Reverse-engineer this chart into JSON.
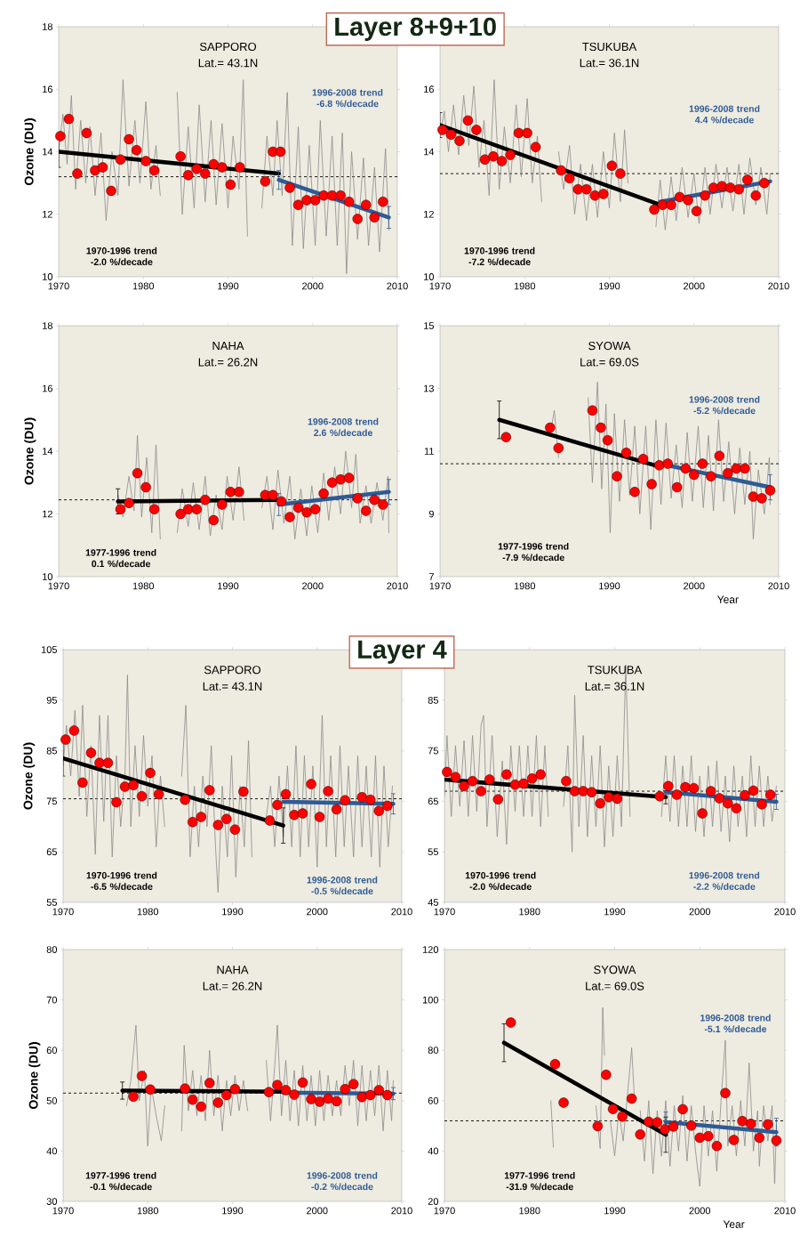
{
  "chart_data": [
    {
      "type": "line",
      "title": "SAPPORO",
      "subtitle": "Lat.= 43.1N",
      "ylabel": "Ozone (DU)",
      "annotations": [
        "Layer 8+9+10"
      ],
      "xlim": [
        1970,
        2010
      ],
      "xticks": [
        1970,
        1980,
        1990,
        2000,
        2010
      ],
      "ylim": [
        10,
        18
      ],
      "yticks": [
        10,
        12,
        14,
        16,
        18
      ],
      "ref_lines": [
        {
          "axis": "y",
          "value": 13.2,
          "line_style": "dashed"
        }
      ],
      "series": [
        {
          "color": "#8c8c8c",
          "x": [
            1970.0,
            1970.5,
            1971.0,
            1971.5,
            1972.0,
            1972.6,
            1973.2,
            1973.7,
            1974.3,
            1975.0,
            1975.6,
            1976.3,
            1977.0,
            1977.6,
            1978.3,
            1979.0,
            1979.6,
            1980.3,
            1980.9,
            1981.5,
            1982.0,
            1983.0,
            1984.0,
            1984.6,
            1985.3,
            1986.0,
            1986.6,
            1987.3,
            1988.0,
            1988.6,
            1989.3,
            1990.0,
            1990.6,
            1991.3,
            1991.8,
            1992.3,
            1993.0,
            1994.0,
            1994.6,
            1995.3,
            1995.8,
            1996.4,
            1997.0,
            1997.6,
            1998.3,
            1998.9,
            1999.6,
            2000.3,
            2000.9,
            2001.6,
            2002.3,
            2002.9,
            2003.5,
            2004.0,
            2004.6,
            2005.3,
            2006.0,
            2006.6,
            2007.3,
            2007.9,
            2008.6,
            2009.0
          ],
          "values": [
            14.0,
            15.2,
            13.6,
            15.8,
            12.8,
            15.0,
            13.0,
            14.8,
            12.6,
            14.6,
            11.8,
            14.0,
            12.6,
            16.3,
            12.9,
            15.0,
            13.0,
            15.6,
            12.8,
            14.2,
            12.6,
            null,
            15.9,
            12.0,
            14.8,
            12.2,
            15.5,
            12.4,
            15.0,
            12.3,
            14.9,
            12.2,
            14.5,
            12.8,
            16.3,
            11.3,
            null,
            12.2,
            14.5,
            12.6,
            15.0,
            12.6,
            15.9,
            11.0,
            14.8,
            10.9,
            14.2,
            11.0,
            15.0,
            11.3,
            14.5,
            11.0,
            14.6,
            10.1,
            14.0,
            11.2,
            13.8,
            11.0,
            13.5,
            10.8,
            14.1,
            11.5
          ]
        },
        {
          "type": "scatter",
          "marker": "circle",
          "color": "#ff0000",
          "x": [
            1970.2,
            1971.2,
            1972.2,
            1973.3,
            1974.3,
            1975.2,
            1976.2,
            1977.3,
            1978.3,
            1979.2,
            1980.3,
            1981.3,
            1984.4,
            1985.3,
            1986.3,
            1987.3,
            1988.3,
            1989.3,
            1990.3,
            1991.4,
            1994.4,
            1995.3,
            1996.2,
            1997.3,
            1998.3,
            1999.3,
            2000.3,
            2001.3,
            2002.3,
            2003.3,
            2004.3,
            2005.3,
            2006.3,
            2007.3,
            2008.3
          ],
          "values": [
            14.5,
            15.05,
            13.3,
            14.6,
            13.4,
            13.5,
            12.75,
            13.75,
            14.4,
            14.05,
            13.7,
            13.4,
            13.85,
            13.25,
            13.45,
            13.3,
            13.6,
            13.5,
            12.95,
            13.5,
            13.05,
            14.0,
            14.0,
            12.85,
            12.3,
            12.45,
            12.45,
            12.6,
            12.6,
            12.6,
            12.4,
            11.85,
            12.3,
            11.9,
            12.4
          ]
        },
        {
          "type": "line",
          "name": "1970-1996 trend -2.0 %/decade",
          "color": "#000000",
          "x": [
            1970,
            1996
          ],
          "values": [
            14.0,
            13.3
          ],
          "errors": [
            0.5,
            null
          ]
        },
        {
          "type": "line",
          "name": "1996-2008 trend -6.8 %/decade",
          "color": "#2e5b95",
          "x": [
            1996,
            2009
          ],
          "values": [
            13.1,
            11.9
          ],
          "errors": [
            0.3,
            0.35
          ]
        }
      ]
    },
    {
      "type": "line",
      "title": "TSUKUBA",
      "subtitle": "Lat.= 36.1N",
      "xlim": [
        1970,
        2010
      ],
      "xticks": [
        1970,
        1980,
        1990,
        2000,
        2010
      ],
      "ylim": [
        10,
        18
      ],
      "yticks": [
        10,
        12,
        14,
        16
      ],
      "ref_lines": [
        {
          "axis": "y",
          "value": 13.3,
          "line_style": "dashed"
        }
      ],
      "series": [
        {
          "color": "#8c8c8c",
          "x": [
            1970.0,
            1970.5,
            1971.0,
            1971.6,
            1972.2,
            1972.8,
            1973.4,
            1974.0,
            1974.6,
            1975.2,
            1975.8,
            1976.4,
            1977.0,
            1977.6,
            1978.3,
            1979.0,
            1979.6,
            1980.3,
            1980.9,
            1981.5,
            1982.0,
            1983.0,
            1984.0,
            1984.6,
            1985.3,
            1985.9,
            1986.6,
            1987.3,
            1988.0,
            1988.6,
            1989.3,
            1990.0,
            1990.6,
            1991.3,
            1991.8,
            1992.2,
            1993.0,
            1995.5,
            1996.0,
            1996.6,
            1997.3,
            1997.9,
            1998.6,
            1999.3,
            2000.0,
            2000.6,
            2001.3,
            2001.9,
            2002.6,
            2003.3,
            2003.9,
            2004.6,
            2005.3,
            2005.9,
            2006.6,
            2007.3,
            2007.9,
            2008.6,
            2009.0
          ],
          "values": [
            14.5,
            15.3,
            14.0,
            15.5,
            13.9,
            15.8,
            14.2,
            16.1,
            13.5,
            15.0,
            12.6,
            16.3,
            12.8,
            14.8,
            13.0,
            15.5,
            13.2,
            15.7,
            13.0,
            14.5,
            12.4,
            null,
            14.0,
            12.8,
            14.2,
            12.0,
            13.6,
            11.8,
            13.6,
            11.9,
            14.0,
            12.2,
            14.6,
            12.4,
            14.7,
            13.0,
            null,
            11.6,
            13.1,
            11.5,
            13.2,
            11.8,
            13.5,
            11.9,
            13.3,
            11.7,
            13.5,
            12.0,
            13.6,
            12.2,
            13.5,
            12.1,
            13.6,
            12.0,
            13.8,
            12.3,
            13.5,
            12.0,
            13.3
          ]
        },
        {
          "type": "scatter",
          "marker": "circle",
          "color": "#ff0000",
          "x": [
            1970.3,
            1971.3,
            1972.3,
            1973.3,
            1974.3,
            1975.3,
            1976.3,
            1977.3,
            1978.3,
            1979.3,
            1980.3,
            1981.3,
            1984.3,
            1985.3,
            1986.3,
            1987.3,
            1988.3,
            1989.3,
            1990.3,
            1991.3,
            1995.3,
            1996.3,
            1997.3,
            1998.3,
            1999.3,
            2000.3,
            2001.3,
            2002.3,
            2003.3,
            2004.3,
            2005.3,
            2006.3,
            2007.3,
            2008.3
          ],
          "values": [
            14.7,
            14.55,
            14.35,
            15.0,
            14.7,
            13.75,
            13.85,
            13.7,
            13.9,
            14.6,
            14.6,
            14.15,
            13.4,
            13.15,
            12.8,
            12.8,
            12.6,
            12.65,
            13.55,
            13.3,
            12.15,
            12.3,
            12.3,
            12.55,
            12.45,
            12.1,
            12.6,
            12.85,
            12.9,
            12.85,
            12.8,
            13.1,
            12.6,
            13.0
          ]
        },
        {
          "type": "line",
          "name": "1970-1996 trend -7.2 %/decade",
          "color": "#000000",
          "x": [
            1970,
            1996
          ],
          "values": [
            14.85,
            12.3
          ],
          "errors": [
            0.4,
            null
          ]
        },
        {
          "type": "line",
          "name": "1996-2008 trend 4.4 %/decade",
          "color": "#2e5b95",
          "x": [
            1996,
            2009
          ],
          "values": [
            12.4,
            13.05
          ],
          "errors": [
            null,
            null
          ]
        }
      ]
    },
    {
      "type": "line",
      "title": "NAHA",
      "subtitle": "Lat.= 26.2N",
      "ylabel": "Ozone (DU)",
      "xlim": [
        1970,
        2010
      ],
      "xticks": [
        1970,
        1980,
        1990,
        2000,
        2010
      ],
      "ylim": [
        10,
        18
      ],
      "yticks": [
        10,
        12,
        14,
        16,
        18
      ],
      "ref_lines": [
        {
          "axis": "y",
          "value": 12.45,
          "line_style": "dashed"
        }
      ],
      "series": [
        {
          "color": "#8c8c8c",
          "x": [
            1977.0,
            1977.6,
            1978.3,
            1978.9,
            1979.3,
            1979.8,
            1980.4,
            1981.0,
            1981.5,
            1982.0,
            1983.0,
            1984.0,
            1984.6,
            1985.3,
            1985.9,
            1986.6,
            1987.3,
            1987.9,
            1988.6,
            1989.3,
            1989.9,
            1990.6,
            1991.3,
            1991.9,
            1993.0,
            1994.0,
            1994.6,
            1995.3,
            1995.9,
            1996.6,
            1997.3,
            1997.9,
            1998.6,
            1999.3,
            1999.9,
            2000.6,
            2001.3,
            2001.9,
            2002.6,
            2003.3,
            2003.9,
            2004.6,
            2005.1,
            2005.6,
            2006.3,
            2006.9,
            2007.6,
            2008.3,
            2008.9,
            2009.0
          ],
          "values": [
            12.6,
            11.9,
            13.2,
            12.1,
            14.5,
            11.9,
            13.8,
            11.4,
            14.2,
            11.2,
            null,
            11.4,
            12.8,
            11.6,
            13.0,
            11.5,
            13.2,
            11.3,
            12.6,
            11.5,
            13.2,
            11.8,
            13.5,
            11.8,
            null,
            12.2,
            13.2,
            11.5,
            13.4,
            11.7,
            13.2,
            11.2,
            12.8,
            11.3,
            12.9,
            11.4,
            13.3,
            11.8,
            13.5,
            12.0,
            14.0,
            12.2,
            13.9,
            11.7,
            12.9,
            11.7,
            13.0,
            11.8,
            13.2,
            11.4
          ]
        },
        {
          "type": "scatter",
          "marker": "circle",
          "color": "#ff0000",
          "x": [
            1977.3,
            1978.3,
            1979.3,
            1980.3,
            1981.3,
            1984.4,
            1985.3,
            1986.3,
            1987.3,
            1988.3,
            1989.3,
            1990.3,
            1991.3,
            1994.4,
            1995.3,
            1996.3,
            1997.3,
            1998.3,
            1999.3,
            2000.3,
            2001.3,
            2002.3,
            2003.3,
            2004.3,
            2005.3,
            2006.3,
            2007.3,
            2008.3
          ],
          "values": [
            12.15,
            12.35,
            13.3,
            12.85,
            12.15,
            12.0,
            12.15,
            12.15,
            12.45,
            11.8,
            12.3,
            12.7,
            12.7,
            12.6,
            12.6,
            12.4,
            11.9,
            12.2,
            12.05,
            12.15,
            12.65,
            13.0,
            13.1,
            13.15,
            12.5,
            12.1,
            12.45,
            12.3
          ]
        },
        {
          "type": "line",
          "name": "1977-1996 trend 0.1 %/decade",
          "color": "#000000",
          "x": [
            1977,
            1996
          ],
          "values": [
            12.4,
            12.45
          ],
          "errors": [
            0.4,
            null
          ]
        },
        {
          "type": "line",
          "name": "1996-2008 trend 2.6 %/decade",
          "color": "#2e5b95",
          "x": [
            1996,
            2009
          ],
          "values": [
            12.3,
            12.7
          ],
          "errors": [
            0.35,
            0.4
          ]
        }
      ]
    },
    {
      "type": "line",
      "title": "SYOWA",
      "subtitle": "Lat.= 69.0S",
      "xlabel": "Year",
      "xlim": [
        1970,
        2010
      ],
      "xticks": [
        1970,
        1980,
        1990,
        2000,
        2010
      ],
      "ylim": [
        7,
        15
      ],
      "yticks": [
        7,
        9,
        11,
        13,
        15
      ],
      "ref_lines": [
        {
          "axis": "y",
          "value": 10.6,
          "line_style": "dashed"
        }
      ],
      "series": [
        {
          "color": "#8c8c8c",
          "x": [
            1983.0,
            1983.5,
            1984.0,
            1985.0,
            1987.5,
            1988.0,
            1988.6,
            1989.1,
            1989.6,
            1990.1,
            1990.6,
            1991.2,
            1991.8,
            1992.4,
            1993.0,
            1993.6,
            1994.3,
            1994.9,
            1995.5,
            1996.1,
            1996.7,
            1997.3,
            1997.9,
            1998.6,
            1999.2,
            1999.8,
            2000.5,
            2001.1,
            2001.7,
            2002.3,
            2002.9,
            2003.5,
            2004.1,
            2004.8,
            2005.4,
            2006.0,
            2006.6,
            2007.0,
            2007.6,
            2008.3,
            2008.9,
            2009.0
          ],
          "values": [
            11.5,
            12.3,
            10.8,
            null,
            12.7,
            10.0,
            13.2,
            9.8,
            12.5,
            8.4,
            12.2,
            9.4,
            12.0,
            9.6,
            11.8,
            9.0,
            11.8,
            8.5,
            12.0,
            9.3,
            11.9,
            9.5,
            11.2,
            9.2,
            11.6,
            9.4,
            11.8,
            9.2,
            11.5,
            9.1,
            12.0,
            9.4,
            11.3,
            9.0,
            11.1,
            9.3,
            11.0,
            8.2,
            10.4,
            9.0,
            10.8,
            9.3
          ]
        },
        {
          "type": "scatter",
          "marker": "circle",
          "color": "#ff0000",
          "x": [
            1977.8,
            1983.0,
            1984.0,
            1988.0,
            1989.0,
            1989.8,
            1990.9,
            1992.0,
            1993.0,
            1994.0,
            1995.0,
            1995.9,
            1996.9,
            1998.0,
            1999.0,
            2000.0,
            2001.0,
            2002.0,
            2003.0,
            2004.0,
            2005.0,
            2006.0,
            2007.0,
            2008.0,
            2009.0
          ],
          "values": [
            11.45,
            11.75,
            11.1,
            12.3,
            11.75,
            11.35,
            10.2,
            10.95,
            9.7,
            10.75,
            9.95,
            10.55,
            10.6,
            9.85,
            10.45,
            10.25,
            10.6,
            10.2,
            10.85,
            10.3,
            10.45,
            10.45,
            9.55,
            9.5,
            9.75
          ]
        },
        {
          "type": "line",
          "name": "1977-1996 trend -7.9 %/decade",
          "color": "#000000",
          "x": [
            1977,
            1996
          ],
          "values": [
            12.0,
            10.5
          ],
          "errors": [
            0.6,
            null
          ]
        },
        {
          "type": "line",
          "name": "1996-2008 trend -5.2 %/decade",
          "color": "#2e5b95",
          "x": [
            1996,
            2009
          ],
          "values": [
            10.6,
            9.85
          ],
          "errors": [
            null,
            0.4
          ]
        }
      ]
    },
    {
      "type": "line",
      "title": "SAPPORO",
      "subtitle": "Lat.= 43.1N",
      "ylabel": "Ozone (DU)",
      "annotations": [
        "Layer 4"
      ],
      "xlim": [
        1970,
        2010
      ],
      "xticks": [
        1970,
        1980,
        1990,
        2000,
        2010
      ],
      "ylim": [
        55,
        105
      ],
      "yticks": [
        55,
        65,
        75,
        85,
        95,
        105
      ],
      "ref_lines": [
        {
          "axis": "y",
          "value": 75.5,
          "line_style": "dashed"
        }
      ],
      "series": [
        {
          "color": "#8c8c8c",
          "x": [
            1970.0,
            1970.4,
            1970.9,
            1971.4,
            1971.9,
            1972.3,
            1972.8,
            1973.3,
            1973.8,
            1974.3,
            1974.8,
            1975.3,
            1975.8,
            1976.3,
            1976.8,
            1977.3,
            1977.6,
            1978.0,
            1978.5,
            1979.0,
            1979.5,
            1980.0,
            1980.5,
            1981.0,
            1981.5,
            1982.0,
            1983.0,
            1984.0,
            1984.5,
            1985.0,
            1985.5,
            1986.0,
            1986.5,
            1987.0,
            1987.5,
            1988.0,
            1988.3,
            1988.8,
            1989.4,
            1989.9,
            1990.4,
            1990.9,
            1991.4,
            1991.9,
            1992.3,
            1993.0,
            1994.0,
            1994.5,
            1995.0,
            1995.5,
            1996.0,
            1996.5,
            1997.0,
            1997.5,
            1998.0,
            1998.5,
            1999.0,
            1999.5,
            2000.0,
            2000.6,
            2001.1,
            2001.6,
            2002.2,
            2002.7,
            2003.2,
            2003.7,
            2004.3,
            2004.8,
            2005.3,
            2005.8,
            2006.4,
            2006.9,
            2007.4,
            2007.9,
            2008.4,
            2008.9
          ],
          "values": [
            82,
            90,
            80,
            93,
            76,
            94,
            72,
            86,
            64.5,
            92,
            71,
            92,
            64,
            84,
            70,
            80,
            100,
            70,
            86,
            72,
            88,
            74,
            84,
            66,
            80,
            70,
            null,
            80,
            94,
            64,
            78,
            66,
            80,
            70,
            86,
            66,
            57,
            78,
            64,
            84,
            60,
            78,
            66,
            87,
            64,
            null,
            72,
            78,
            66,
            80,
            68,
            82,
            66,
            86,
            64,
            84,
            66,
            82,
            62,
            92,
            66,
            84,
            64,
            86,
            66,
            82,
            64,
            84,
            66,
            82,
            64,
            84,
            62,
            82,
            66,
            78
          ]
        },
        {
          "type": "scatter",
          "marker": "circle",
          "color": "#ff0000",
          "x": [
            1970.3,
            1971.3,
            1972.3,
            1973.3,
            1974.3,
            1975.3,
            1976.3,
            1977.3,
            1978.3,
            1979.3,
            1980.3,
            1981.3,
            1984.4,
            1985.3,
            1986.3,
            1987.3,
            1988.3,
            1989.3,
            1990.3,
            1991.3,
            1994.4,
            1995.3,
            1996.3,
            1997.3,
            1998.3,
            1999.3,
            2000.3,
            2001.3,
            2002.3,
            2003.3,
            2005.3,
            2006.3,
            2007.3,
            2008.3
          ],
          "values": [
            87.2,
            89,
            78.7,
            84.6,
            82.6,
            82.6,
            74.8,
            77.9,
            78.2,
            76,
            80.6,
            76.4,
            75.3,
            70.9,
            71.9,
            77.2,
            70.3,
            71.5,
            69.4,
            76.9,
            71.2,
            74.3,
            76.4,
            72.3,
            72.6,
            78.4,
            71.9,
            77,
            73.4,
            75.2,
            75.8,
            75.3,
            73.1,
            74.1
          ]
        },
        {
          "type": "line",
          "name": "1970-1996 trend -6.5 %/decade",
          "color": "#000000",
          "x": [
            1970,
            1996
          ],
          "values": [
            83.5,
            70.2
          ],
          "errors": [
            3.5,
            3.5
          ]
        },
        {
          "type": "line",
          "name": "1996-2008 trend -0.5 %/decade",
          "color": "#2e5b95",
          "x": [
            1996,
            2009
          ],
          "values": [
            74.9,
            74.5
          ],
          "errors": [
            null,
            2
          ]
        }
      ]
    },
    {
      "type": "line",
      "title": "TSUKUBA",
      "subtitle": "Lat.= 36.1N",
      "xlim": [
        1970,
        2010
      ],
      "xticks": [
        1970,
        1980,
        1990,
        2000,
        2010
      ],
      "ylim": [
        45,
        95
      ],
      "yticks": [
        45,
        55,
        65,
        75,
        85
      ],
      "ref_lines": [
        {
          "axis": "y",
          "value": 67,
          "line_style": "dashed"
        }
      ],
      "series": [
        {
          "color": "#8c8c8c",
          "x": [
            1970.0,
            1970.3,
            1970.8,
            1971.3,
            1971.8,
            1972.3,
            1972.8,
            1973.3,
            1973.8,
            1974.3,
            1974.6,
            1975.0,
            1975.6,
            1976.2,
            1976.8,
            1977.3,
            1977.8,
            1978.3,
            1978.8,
            1979.3,
            1979.8,
            1980.3,
            1980.8,
            1981.3,
            1981.8,
            1982.2,
            1983.0,
            1984.0,
            1984.5,
            1985.0,
            1985.3,
            1985.8,
            1986.3,
            1986.8,
            1987.3,
            1987.8,
            1988.3,
            1988.8,
            1989.3,
            1989.8,
            1990.3,
            1990.8,
            1991.3,
            1991.8,
            1993.0,
            1995.5,
            1996.0,
            1996.5,
            1997.0,
            1997.5,
            1998.0,
            1998.5,
            1999.0,
            1999.5,
            2000.0,
            2000.5,
            2001.0,
            2001.5,
            2002.0,
            2002.5,
            2003.0,
            2003.5,
            2004.0,
            2004.5,
            2005.0,
            2005.5,
            2006.0,
            2006.5,
            2007.0,
            2007.5,
            2008.0,
            2008.5,
            2009.0
          ],
          "values": [
            66,
            78,
            62,
            76,
            64,
            77,
            62,
            78,
            63,
            80,
            82,
            60,
            78,
            58,
            73,
            56.5,
            76,
            63,
            76,
            62,
            76,
            62,
            78,
            60,
            76,
            62,
            null,
            64,
            76,
            55,
            86,
            60,
            78,
            58,
            74,
            60,
            76,
            56,
            72,
            58,
            74,
            60,
            92,
            62,
            null,
            62,
            74,
            61,
            74,
            60,
            72,
            60,
            74,
            59,
            70,
            58,
            72,
            60,
            73,
            59,
            70,
            57,
            72,
            60,
            70,
            58,
            74,
            60,
            72,
            60,
            70,
            61,
            68
          ]
        },
        {
          "type": "scatter",
          "marker": "circle",
          "color": "#ff0000",
          "x": [
            1970.3,
            1971.3,
            1972.3,
            1973.3,
            1974.3,
            1975.3,
            1976.3,
            1977.3,
            1978.3,
            1979.3,
            1980.3,
            1981.3,
            1984.3,
            1985.3,
            1986.3,
            1987.3,
            1988.3,
            1989.3,
            1990.3,
            1995.3,
            1996.3,
            1997.3,
            1998.3,
            1999.3,
            2000.3,
            2001.3,
            2002.3,
            2003.3,
            2004.3,
            2005.3,
            2006.3,
            2007.3,
            2008.3
          ],
          "values": [
            70.8,
            69.8,
            68,
            69,
            67,
            69.3,
            65.4,
            70.3,
            68.3,
            68.5,
            69.5,
            70.3,
            69,
            67,
            67,
            66.8,
            64.6,
            65.8,
            65.5,
            66,
            68,
            66.3,
            67.8,
            67.6,
            62.6,
            67,
            65.6,
            64.6,
            63.6,
            66.2,
            67.1,
            64.4,
            66.3
          ]
        },
        {
          "type": "line",
          "name": "1970-1996 trend -2.0 %/decade",
          "color": "#000000",
          "x": [
            1970,
            1996
          ],
          "values": [
            69.3,
            65.8
          ],
          "errors": [
            null,
            1.3
          ]
        },
        {
          "type": "line",
          "name": "1996-2008 trend -2.2 %/decade",
          "color": "#2e5b95",
          "x": [
            1996,
            2009
          ],
          "values": [
            66.8,
            64.9
          ],
          "errors": [
            null,
            1.5
          ]
        }
      ]
    },
    {
      "type": "line",
      "title": "NAHA",
      "subtitle": "Lat.= 26.2N",
      "ylabel": "Ozone (DU)",
      "xlim": [
        1970,
        2010
      ],
      "xticks": [
        1970,
        1980,
        1990,
        2000,
        2010
      ],
      "ylim": [
        30,
        80
      ],
      "yticks": [
        30,
        40,
        50,
        60,
        70,
        80
      ],
      "ref_lines": [
        {
          "axis": "y",
          "value": 51.5,
          "line_style": "dashed"
        }
      ],
      "series": [
        {
          "color": "#8c8c8c",
          "x": [
            1977.5,
            1978.0,
            1978.6,
            1979.0,
            1979.6,
            1980.0,
            1980.4,
            1981.0,
            1981.6,
            1982.0,
            1983.0,
            1984.0,
            1984.3,
            1984.8,
            1985.3,
            1985.8,
            1986.3,
            1986.8,
            1987.3,
            1987.8,
            1988.3,
            1988.8,
            1989.3,
            1989.8,
            1990.3,
            1990.8,
            1991.3,
            1991.8,
            1993.0,
            1994.0,
            1994.5,
            1995.0,
            1995.3,
            1995.8,
            1996.3,
            1996.8,
            1997.3,
            1997.8,
            1998.3,
            1998.8,
            1999.3,
            1999.8,
            2000.3,
            2000.8,
            2001.3,
            2001.8,
            2002.3,
            2002.8,
            2003.3,
            2003.8,
            2004.3,
            2004.8,
            2005.3,
            2005.8,
            2006.3,
            2006.8,
            2007.3,
            2007.8,
            2008.3,
            2008.8,
            2009.0
          ],
          "values": [
            49,
            54,
            65,
            50,
            56,
            41,
            53,
            47,
            42,
            49,
            null,
            44,
            61,
            48,
            56,
            47,
            55,
            46,
            60,
            47,
            55,
            44,
            54,
            47,
            55,
            48,
            54,
            48,
            null,
            58,
            46,
            57,
            65,
            47,
            58,
            46,
            56,
            45,
            57,
            46,
            55,
            45,
            56,
            46,
            55,
            47,
            54,
            47,
            57,
            49,
            58,
            45,
            57,
            46,
            56,
            47,
            57,
            44,
            56,
            46,
            54
          ]
        },
        {
          "type": "scatter",
          "marker": "circle",
          "color": "#ff0000",
          "x": [
            1978.3,
            1979.3,
            1980.3,
            1984.4,
            1985.3,
            1986.3,
            1987.3,
            1988.3,
            1989.3,
            1990.3,
            1994.3,
            1995.3,
            1996.3,
            1997.3,
            1998.3,
            1999.3,
            2000.3,
            2001.3,
            2002.3,
            2003.3,
            2004.3,
            2005.3,
            2006.3,
            2007.3,
            2008.3
          ],
          "values": [
            50.8,
            54.9,
            52.2,
            52.4,
            50.2,
            48.8,
            53.5,
            49.6,
            51.1,
            52.3,
            51.7,
            53.1,
            52.1,
            51.2,
            53.6,
            50.3,
            49.8,
            50.4,
            49.9,
            52.3,
            53.3,
            50.7,
            51.1,
            52.1,
            51.1
          ]
        },
        {
          "type": "line",
          "name": "1977-1996 trend -0.1 %/decade",
          "color": "#000000",
          "x": [
            1977,
            1996
          ],
          "values": [
            52,
            51.8
          ],
          "errors": [
            1.7,
            null
          ]
        },
        {
          "type": "line",
          "name": "1996-2008 trend -0.2 %/decade",
          "color": "#2e5b95",
          "x": [
            1996,
            2009
          ],
          "values": [
            51.6,
            51.4
          ],
          "errors": [
            null,
            1.2
          ]
        }
      ]
    },
    {
      "type": "line",
      "title": "SYOWA",
      "subtitle": "Lat.= 69.0S",
      "xlabel": "Year",
      "xlim": [
        1970,
        2010
      ],
      "xticks": [
        1970,
        1980,
        1990,
        2000,
        2010
      ],
      "ylim": [
        20,
        120
      ],
      "yticks": [
        20,
        40,
        60,
        80,
        100,
        120
      ],
      "ref_lines": [
        {
          "axis": "y",
          "value": 52,
          "line_style": "dashed"
        }
      ],
      "series": [
        {
          "color": "#8c8c8c",
          "x": [
            1982.5,
            1982.8,
            1983.5,
            1987.8,
            1988.3,
            1988.6,
            1988.8,
            1989.2,
            1989.5,
            1990.0,
            1990.5,
            1991.0,
            1991.5,
            1992.0,
            1992.3,
            1992.6,
            1993.0,
            1993.5,
            1994.0,
            1994.5,
            1995.0,
            1995.5,
            1996.0,
            1996.5,
            1997.0,
            1997.5,
            1998.0,
            1998.5,
            1999.0,
            1999.5,
            2000.0,
            2000.5,
            2001.0,
            2001.5,
            2002.0,
            2002.5,
            2003.0,
            2003.3,
            2003.8,
            2004.3,
            2004.8,
            2005.3,
            2005.8,
            2006.3,
            2006.8,
            2007.0,
            2007.5,
            2008.0,
            2008.5,
            2008.8,
            2009.0
          ],
          "values": [
            60,
            41.5,
            null,
            58,
            41,
            97,
            78,
            null,
            52,
            38,
            56,
            44,
            62,
            81,
            62,
            null,
            56,
            36,
            60,
            31,
            56,
            38,
            60,
            34,
            58,
            40,
            62,
            36,
            58,
            40,
            26,
            58,
            38,
            56,
            32,
            60,
            84,
            42,
            58,
            38,
            60,
            42,
            75,
            40,
            56,
            34,
            58,
            44,
            58,
            27,
            50
          ]
        },
        {
          "type": "scatter",
          "marker": "circle",
          "color": "#ff0000",
          "x": [
            1977.8,
            1983.0,
            1984.0,
            1988.0,
            1989.0,
            1989.8,
            1990.9,
            1992.0,
            1993.0,
            1994.0,
            1995.0,
            1995.9,
            1996.9,
            1998.0,
            1999.0,
            2000.0,
            2001.0,
            2002.0,
            2003.0,
            2004.0,
            2005.0,
            2006.0,
            2007.0,
            2008.0,
            2009.0
          ],
          "values": [
            91,
            74.5,
            59.2,
            49.9,
            70.3,
            56.7,
            53.7,
            60.8,
            46.6,
            51.6,
            51.4,
            48.6,
            49.7,
            56.6,
            50.1,
            45.3,
            45.9,
            42.0,
            63.0,
            44.4,
            51.9,
            50.8,
            45.3,
            50.6,
            44.2
          ]
        },
        {
          "type": "line",
          "name": "1977-1996 trend -31.9 %/decade",
          "color": "#000000",
          "x": [
            1977,
            1996
          ],
          "values": [
            83,
            46.5
          ],
          "errors": [
            7.5,
            7
          ]
        },
        {
          "type": "line",
          "name": "1996-2008 trend -5.1 %/decade",
          "color": "#2e5b95",
          "x": [
            1996,
            2009
          ],
          "values": [
            51.5,
            47.5
          ],
          "errors": [
            4,
            5.5
          ]
        }
      ]
    }
  ]
}
